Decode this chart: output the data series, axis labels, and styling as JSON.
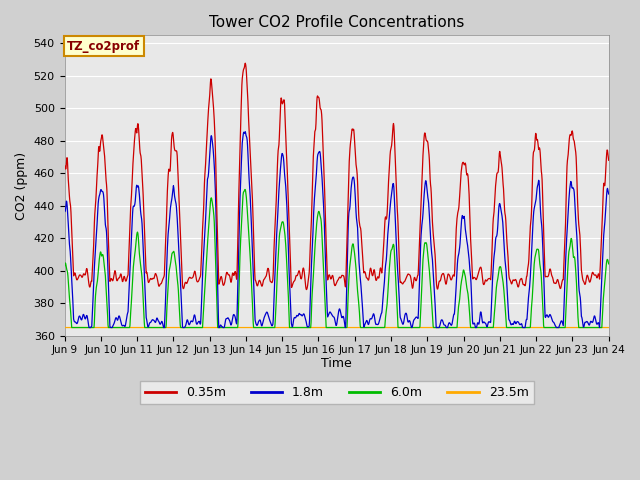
{
  "title": "Tower CO2 Profile Concentrations",
  "xlabel": "Time",
  "ylabel": "CO2 (ppm)",
  "ylim": [
    360,
    545
  ],
  "yticks": [
    360,
    380,
    400,
    420,
    440,
    460,
    480,
    500,
    520,
    540
  ],
  "series_labels": [
    "0.35m",
    "1.8m",
    "6.0m",
    "23.5m"
  ],
  "series_colors": [
    "#cc0000",
    "#0000cc",
    "#00bb00",
    "#ffaa00"
  ],
  "xtick_labels": [
    "Jun 9",
    "Jun 10",
    "Jun 11",
    "Jun 12",
    "Jun 13",
    "Jun 14",
    "Jun 15",
    "Jun 16",
    "Jun 17",
    "Jun 18",
    "Jun 19",
    "Jun 20",
    "Jun 21",
    "Jun 22",
    "Jun 23",
    "Jun 24"
  ],
  "legend_label": "TZ_co2prof",
  "legend_bg": "#ffffcc",
  "legend_border": "#cc8800",
  "bg_color": "#e8e8e8",
  "grid_color": "#ffffff",
  "n_points": 1440
}
